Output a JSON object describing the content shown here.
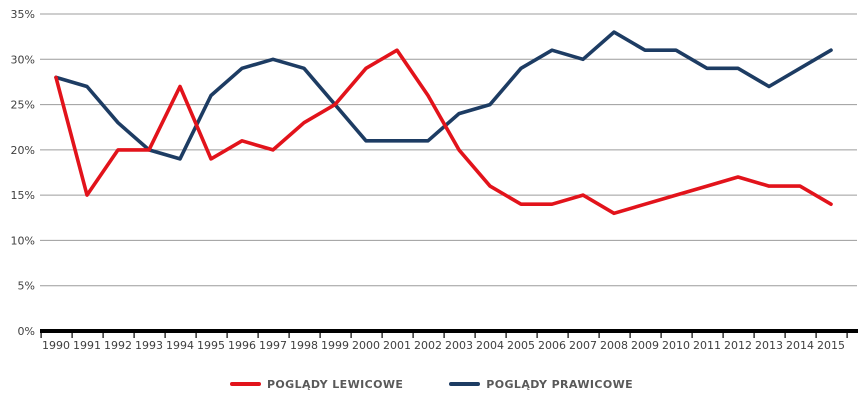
{
  "chart_data": {
    "type": "line",
    "title": "",
    "xlabel": "",
    "ylabel": "",
    "categories": [
      "1990",
      "1991",
      "1992",
      "1993",
      "1994",
      "1995",
      "1996",
      "1997",
      "1998",
      "1999",
      "2000",
      "2001",
      "2002",
      "2003",
      "2004",
      "2005",
      "2006",
      "2007",
      "2008",
      "2009",
      "2010",
      "2011",
      "2012",
      "2013",
      "2014",
      "2015"
    ],
    "series": [
      {
        "name": "POGLĄDY LEWICOWE",
        "color": "#e2131b",
        "z": 2,
        "values": [
          28,
          15,
          20,
          20,
          27,
          19,
          21,
          20,
          23,
          25,
          29,
          31,
          26,
          20,
          16,
          14,
          14,
          15,
          13,
          14,
          15,
          16,
          17,
          16,
          16,
          14
        ]
      },
      {
        "name": "POGLĄDY PRAWICOWE",
        "color": "#1d3c63",
        "z": 1,
        "values": [
          28,
          27,
          23,
          20,
          19,
          26,
          29,
          30,
          29,
          25,
          21,
          21,
          21,
          24,
          25,
          29,
          31,
          30,
          33,
          31,
          31,
          29,
          29,
          27,
          29,
          31
        ]
      }
    ],
    "ylim": [
      0,
      35
    ],
    "ytick_step": 5,
    "ytick_labels": [
      "0%",
      "5%",
      "10%",
      "15%",
      "20%",
      "25%",
      "30%",
      "35%"
    ],
    "grid": "horizontal",
    "legend_position": "bottom-center"
  },
  "colors": {
    "background": "#ffffff",
    "gridline": "#9c9c9c",
    "axis": "#000000",
    "tick_text": "#3f3f3f",
    "legend_text": "#595959"
  }
}
